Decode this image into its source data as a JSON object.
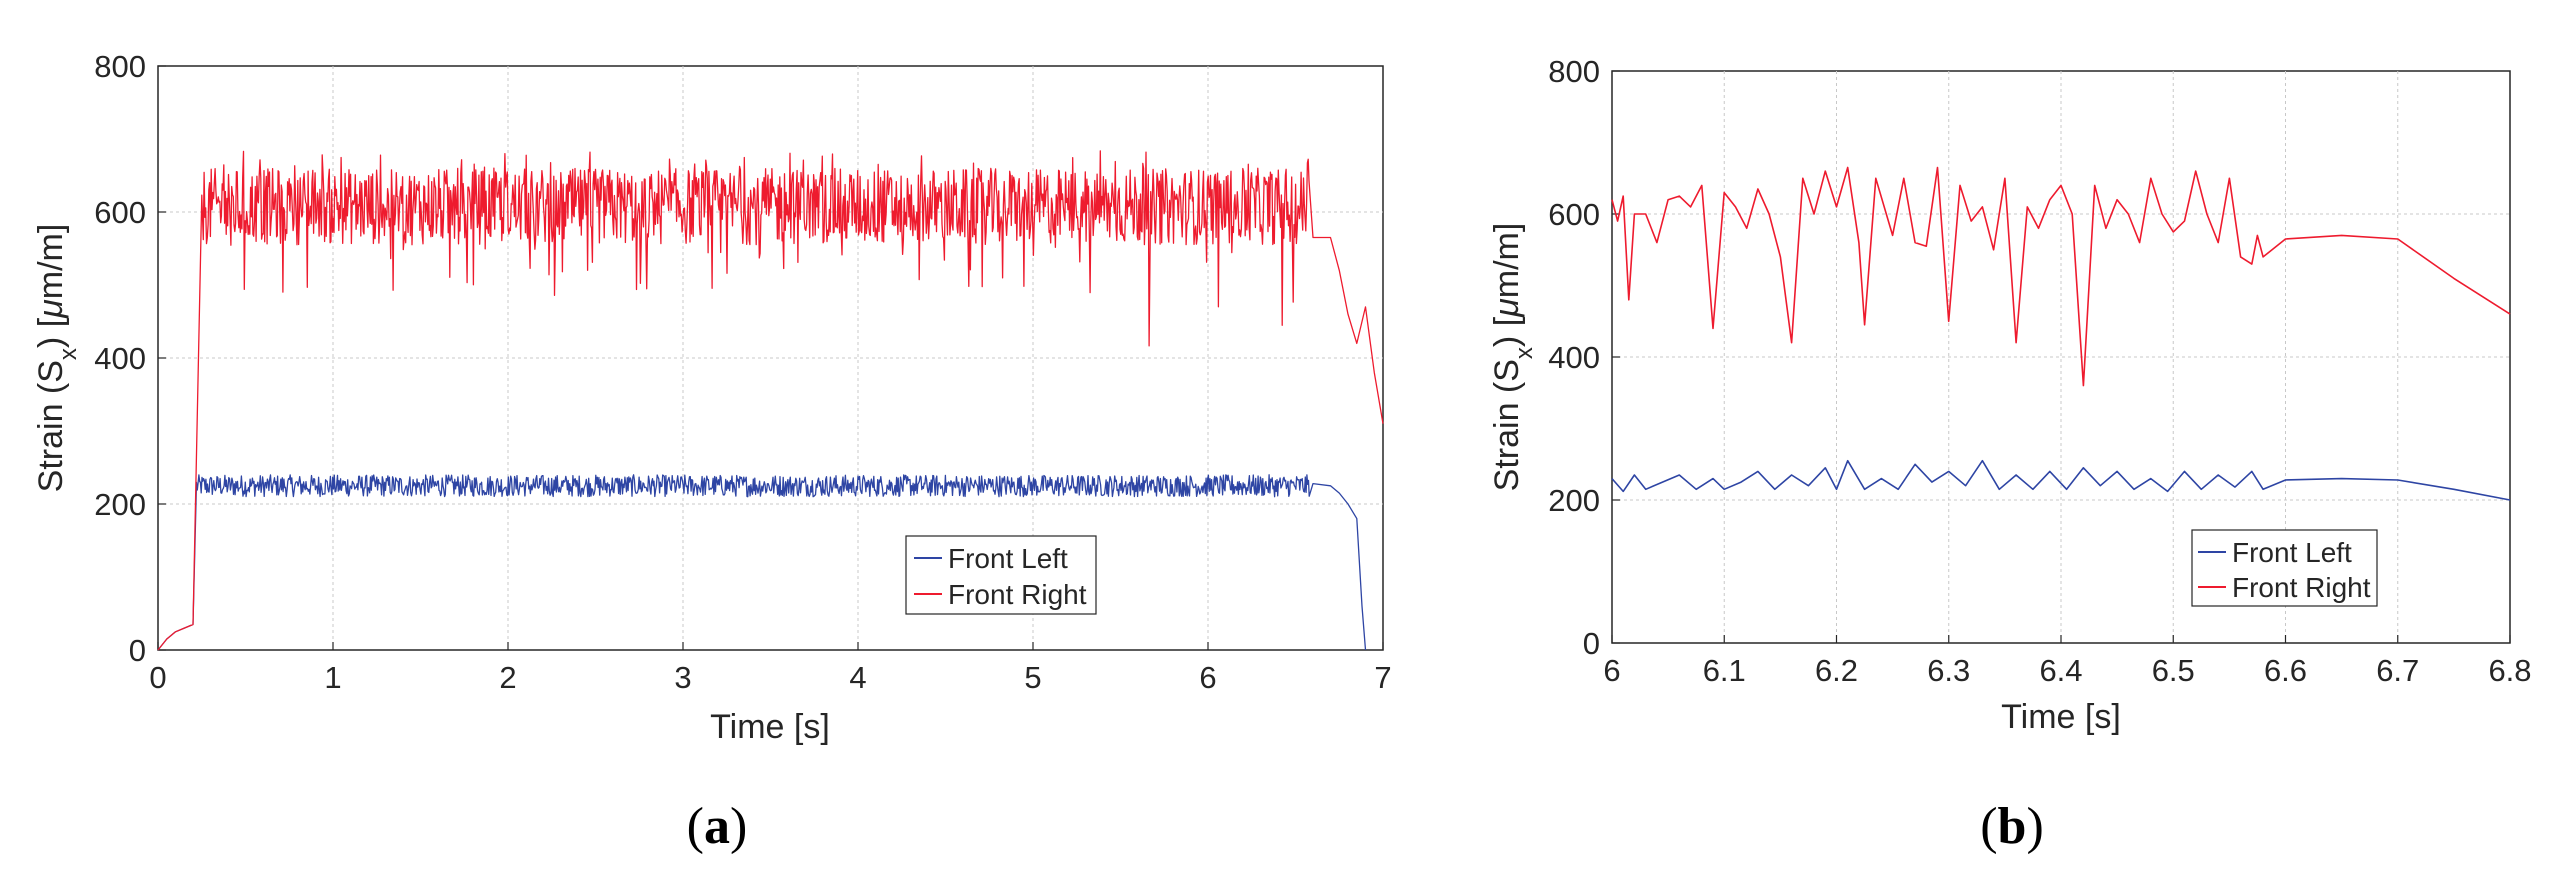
{
  "chart_data": [
    {
      "type": "line",
      "panel_label": "a",
      "xlabel": "Time [s]",
      "ylabel": "Strain (S",
      "ylabel_sub": "x",
      "ylabel_tail": ") [",
      "ylabel_mu": "μ",
      "ylabel_unit": "m/m]",
      "xlim": [
        0,
        7
      ],
      "ylim": [
        0,
        800
      ],
      "x_ticks": [
        "0",
        "1",
        "2",
        "3",
        "4",
        "5",
        "6",
        "7"
      ],
      "y_ticks": [
        "0",
        "200",
        "400",
        "600",
        "800"
      ],
      "grid": true,
      "legend_position": "lower-right",
      "series": [
        {
          "name": "Front Left",
          "color": "#2e45a4",
          "points": [
            [
              0,
              0
            ],
            [
              0.05,
              15
            ],
            [
              0.1,
              25
            ],
            [
              0.15,
              30
            ],
            [
              0.2,
              35
            ],
            [
              0.22,
              245
            ],
            [
              0.3,
              240
            ],
            [
              0.35,
              255
            ],
            [
              0.4,
              230
            ],
            [
              0.6,
              228
            ],
            [
              1,
              225
            ],
            [
              2,
              225
            ],
            [
              3,
              225
            ],
            [
              4,
              224
            ],
            [
              5,
              226
            ],
            [
              6,
              226
            ],
            [
              6.5,
              228
            ],
            [
              6.6,
              228
            ],
            [
              6.7,
              225
            ],
            [
              6.75,
              215
            ],
            [
              6.8,
              200
            ],
            [
              6.85,
              180
            ],
            [
              6.88,
              60
            ],
            [
              6.9,
              0
            ]
          ],
          "band_top": 240,
          "band_bottom": 210
        },
        {
          "name": "Front Right",
          "color": "#ee1b2e",
          "points": [
            [
              0,
              0
            ],
            [
              0.05,
              15
            ],
            [
              0.1,
              25
            ],
            [
              0.15,
              30
            ],
            [
              0.2,
              35
            ],
            [
              0.25,
              600
            ],
            [
              0.3,
              660
            ],
            [
              0.35,
              700
            ],
            [
              0.4,
              610
            ],
            [
              1,
              605
            ],
            [
              2,
              605
            ],
            [
              3,
              605
            ],
            [
              4,
              600
            ],
            [
              5,
              605
            ],
            [
              6,
              600
            ],
            [
              6.5,
              590
            ],
            [
              6.6,
              565
            ],
            [
              6.7,
              565
            ],
            [
              6.75,
              520
            ],
            [
              6.8,
              460
            ],
            [
              6.85,
              420
            ],
            [
              6.9,
              470
            ],
            [
              6.95,
              380
            ],
            [
              7,
              310
            ]
          ],
          "band_top": 660,
          "band_bottom": 555
        }
      ]
    },
    {
      "type": "line",
      "panel_label": "b",
      "xlabel": "Time [s]",
      "ylabel": "Strain (S",
      "ylabel_sub": "x",
      "ylabel_tail": ") [",
      "ylabel_mu": "μ",
      "ylabel_unit": "m/m]",
      "xlim": [
        6,
        6.8
      ],
      "ylim": [
        0,
        800
      ],
      "x_ticks": [
        "6",
        "6.1",
        "6.2",
        "6.3",
        "6.4",
        "6.5",
        "6.6",
        "6.7",
        "6.8"
      ],
      "y_ticks": [
        "0",
        "200",
        "400",
        "600",
        "800"
      ],
      "grid": true,
      "legend_position": "lower-right",
      "series": [
        {
          "name": "Front Left",
          "color": "#2e45a4",
          "points": [
            [
              6.0,
              230
            ],
            [
              6.01,
              212
            ],
            [
              6.02,
              235
            ],
            [
              6.03,
              215
            ],
            [
              6.045,
              225
            ],
            [
              6.06,
              235
            ],
            [
              6.075,
              215
            ],
            [
              6.09,
              230
            ],
            [
              6.1,
              215
            ],
            [
              6.115,
              225
            ],
            [
              6.13,
              240
            ],
            [
              6.145,
              215
            ],
            [
              6.16,
              235
            ],
            [
              6.175,
              220
            ],
            [
              6.19,
              245
            ],
            [
              6.2,
              215
            ],
            [
              6.21,
              255
            ],
            [
              6.225,
              215
            ],
            [
              6.24,
              230
            ],
            [
              6.255,
              215
            ],
            [
              6.27,
              250
            ],
            [
              6.285,
              225
            ],
            [
              6.3,
              240
            ],
            [
              6.315,
              220
            ],
            [
              6.33,
              255
            ],
            [
              6.345,
              215
            ],
            [
              6.36,
              235
            ],
            [
              6.375,
              215
            ],
            [
              6.39,
              240
            ],
            [
              6.405,
              215
            ],
            [
              6.42,
              245
            ],
            [
              6.435,
              220
            ],
            [
              6.45,
              240
            ],
            [
              6.465,
              215
            ],
            [
              6.48,
              230
            ],
            [
              6.495,
              212
            ],
            [
              6.51,
              240
            ],
            [
              6.525,
              215
            ],
            [
              6.54,
              235
            ],
            [
              6.555,
              218
            ],
            [
              6.57,
              240
            ],
            [
              6.58,
              215
            ],
            [
              6.6,
              228
            ],
            [
              6.65,
              230
            ],
            [
              6.7,
              228
            ],
            [
              6.75,
              215
            ],
            [
              6.8,
              200
            ]
          ]
        },
        {
          "name": "Front Right",
          "color": "#ee1b2e",
          "points": [
            [
              6.0,
              620
            ],
            [
              6.005,
              590
            ],
            [
              6.01,
              625
            ],
            [
              6.015,
              480
            ],
            [
              6.02,
              600
            ],
            [
              6.03,
              600
            ],
            [
              6.04,
              560
            ],
            [
              6.05,
              620
            ],
            [
              6.06,
              625
            ],
            [
              6.07,
              610
            ],
            [
              6.08,
              640
            ],
            [
              6.09,
              440
            ],
            [
              6.1,
              630
            ],
            [
              6.11,
              610
            ],
            [
              6.12,
              580
            ],
            [
              6.13,
              635
            ],
            [
              6.14,
              600
            ],
            [
              6.15,
              540
            ],
            [
              6.16,
              420
            ],
            [
              6.17,
              650
            ],
            [
              6.18,
              600
            ],
            [
              6.19,
              660
            ],
            [
              6.2,
              610
            ],
            [
              6.21,
              665
            ],
            [
              6.22,
              560
            ],
            [
              6.225,
              445
            ],
            [
              6.235,
              650
            ],
            [
              6.25,
              570
            ],
            [
              6.26,
              650
            ],
            [
              6.27,
              560
            ],
            [
              6.28,
              555
            ],
            [
              6.29,
              665
            ],
            [
              6.3,
              450
            ],
            [
              6.31,
              640
            ],
            [
              6.32,
              590
            ],
            [
              6.33,
              610
            ],
            [
              6.34,
              550
            ],
            [
              6.35,
              650
            ],
            [
              6.36,
              420
            ],
            [
              6.37,
              610
            ],
            [
              6.38,
              580
            ],
            [
              6.39,
              620
            ],
            [
              6.4,
              640
            ],
            [
              6.41,
              600
            ],
            [
              6.42,
              360
            ],
            [
              6.43,
              640
            ],
            [
              6.44,
              580
            ],
            [
              6.45,
              620
            ],
            [
              6.46,
              600
            ],
            [
              6.47,
              560
            ],
            [
              6.48,
              650
            ],
            [
              6.49,
              600
            ],
            [
              6.5,
              575
            ],
            [
              6.51,
              590
            ],
            [
              6.52,
              660
            ],
            [
              6.53,
              600
            ],
            [
              6.54,
              560
            ],
            [
              6.55,
              650
            ],
            [
              6.56,
              540
            ],
            [
              6.57,
              530
            ],
            [
              6.575,
              570
            ],
            [
              6.58,
              540
            ],
            [
              6.6,
              565
            ],
            [
              6.65,
              570
            ],
            [
              6.7,
              565
            ],
            [
              6.75,
              510
            ],
            [
              6.8,
              460
            ]
          ]
        }
      ]
    }
  ],
  "captions": {
    "a_open": "(",
    "a_label": "a",
    "a_close": ")",
    "b_open": "(",
    "b_label": "b",
    "b_close": ")"
  }
}
